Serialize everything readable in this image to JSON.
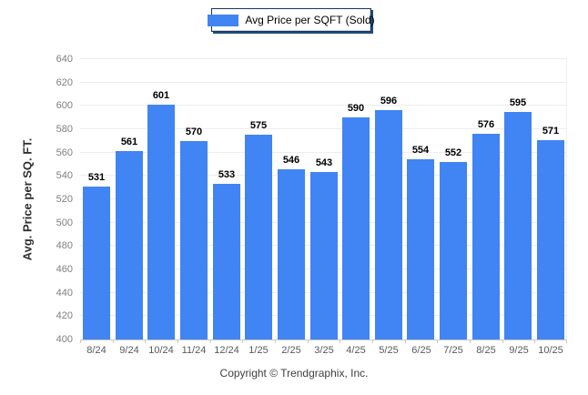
{
  "legend": {
    "label": "Avg Price per SQFT (Sold)",
    "swatch_color": "#4184f3"
  },
  "footer": {
    "text": "Copyright © Trendgraphix, Inc."
  },
  "chart_data": {
    "type": "bar",
    "title": "Avg Price per SQFT (Sold)",
    "categories": [
      "8/24",
      "9/24",
      "10/24",
      "11/24",
      "12/24",
      "1/25",
      "2/25",
      "3/25",
      "4/25",
      "5/25",
      "6/25",
      "7/25",
      "8/25",
      "9/25",
      "10/25"
    ],
    "values": [
      531,
      561,
      601,
      570,
      533,
      575,
      546,
      543,
      590,
      596,
      554,
      552,
      576,
      595,
      571
    ],
    "xlabel": "",
    "ylabel": "Avg. Price per SQ. FT.",
    "ylim": [
      400,
      640
    ],
    "ytick_step": 20,
    "grid": "horizontal",
    "legend_position": "top-center",
    "bar_color": "#4184f3",
    "value_labels": true
  }
}
